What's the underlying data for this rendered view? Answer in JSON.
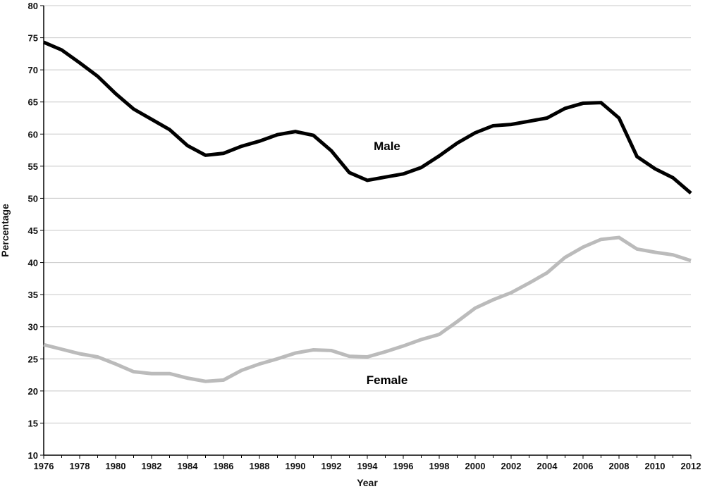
{
  "chart_data": {
    "type": "line",
    "title": "",
    "xlabel": "Year",
    "ylabel": "Percentage",
    "xlim": [
      1976,
      2012
    ],
    "ylim": [
      10,
      80
    ],
    "x_ticks": [
      "1976",
      "1978",
      "1980",
      "1982",
      "1984",
      "1986",
      "1988",
      "1990",
      "1992",
      "1994",
      "1996",
      "1998",
      "2000",
      "2002",
      "2004",
      "2006",
      "2008",
      "2010",
      "2012"
    ],
    "y_ticks": [
      "10",
      "15",
      "20",
      "25",
      "30",
      "35",
      "40",
      "45",
      "50",
      "55",
      "60",
      "65",
      "70",
      "75",
      "80"
    ],
    "grid": "horizontal",
    "x": [
      1976,
      1977,
      1978,
      1979,
      1980,
      1981,
      1982,
      1983,
      1984,
      1985,
      1986,
      1987,
      1988,
      1989,
      1990,
      1991,
      1992,
      1993,
      1994,
      1995,
      1996,
      1997,
      1998,
      1999,
      2000,
      2001,
      2002,
      2003,
      2004,
      2005,
      2006,
      2007,
      2008,
      2009,
      2010,
      2011,
      2012
    ],
    "series": [
      {
        "name": "Male",
        "color": "#000000",
        "values": [
          74.3,
          73.1,
          71.1,
          69.0,
          66.3,
          63.9,
          62.3,
          60.7,
          58.2,
          56.7,
          57.0,
          58.1,
          58.9,
          59.9,
          60.4,
          59.8,
          57.4,
          54.0,
          52.8,
          53.3,
          53.8,
          54.8,
          56.6,
          58.6,
          60.2,
          61.3,
          61.5,
          62.0,
          62.5,
          64.0,
          64.8,
          64.9,
          62.5,
          56.5,
          54.6,
          53.2,
          50.8
        ]
      },
      {
        "name": "Female",
        "color": "#bbbbbb",
        "values": [
          27.2,
          26.5,
          25.8,
          25.3,
          24.2,
          23.0,
          22.7,
          22.7,
          22.0,
          21.5,
          21.7,
          23.2,
          24.2,
          25.0,
          25.9,
          26.4,
          26.3,
          25.4,
          25.3,
          26.1,
          27.0,
          28.0,
          28.8,
          30.8,
          32.9,
          34.2,
          35.3,
          36.8,
          38.4,
          40.8,
          42.4,
          43.6,
          43.9,
          42.1,
          41.6,
          41.2,
          40.3
        ]
      }
    ]
  }
}
